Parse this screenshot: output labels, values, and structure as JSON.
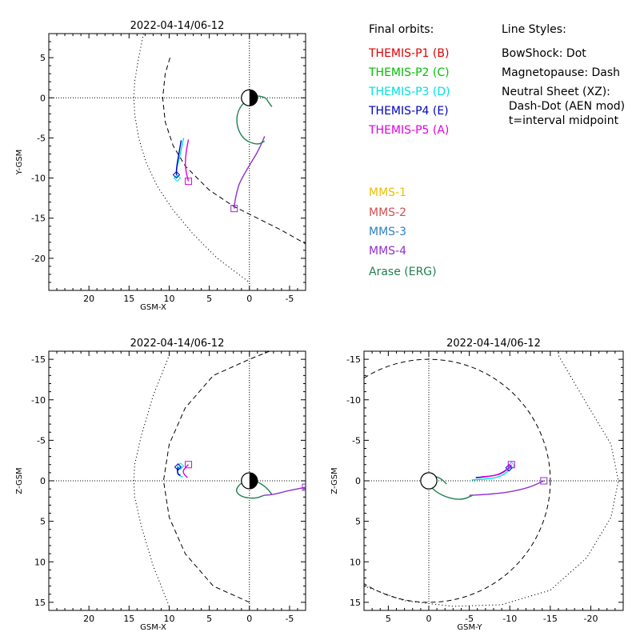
{
  "panels": [
    {
      "id": "xy",
      "title": "2022-04-14/06-12",
      "xlabel": "GSM-X",
      "ylabel": "Y-GSM",
      "xlim": [
        25,
        -7
      ],
      "ylim": [
        8,
        -24
      ],
      "xticks": [
        20,
        15,
        10,
        5,
        0,
        -5
      ],
      "xtick_labels": [
        "20",
        "15",
        "10",
        "5",
        "0",
        "-5"
      ],
      "yticks": [
        5,
        0,
        -5,
        -10,
        -15,
        -20
      ],
      "ytick_labels": [
        "5",
        "0",
        "-5",
        "-10",
        "-15",
        "-20"
      ]
    },
    {
      "id": "xz",
      "title": "2022-04-14/06-12",
      "xlabel": "GSM-X",
      "ylabel": "Z-GSM",
      "xlim": [
        25,
        -7
      ],
      "ylim": [
        -16,
        16
      ],
      "xticks": [
        20,
        15,
        10,
        5,
        0,
        -5
      ],
      "xtick_labels": [
        "20",
        "15",
        "10",
        "5",
        "0",
        "-5"
      ],
      "yticks": [
        -15,
        -10,
        -5,
        0,
        5,
        10,
        15
      ],
      "ytick_labels": [
        "-15",
        "-10",
        "-5",
        "0",
        "5",
        "10",
        "15"
      ]
    },
    {
      "id": "yz",
      "title": "2022-04-14/06-12",
      "xlabel": "GSM-Y",
      "ylabel": "Z-GSM",
      "xlim": [
        8,
        -24
      ],
      "ylim": [
        -16,
        16
      ],
      "xticks": [
        5,
        0,
        -5,
        -10,
        -15,
        -20
      ],
      "xtick_labels": [
        "5",
        "0",
        "-5",
        "-10",
        "-15",
        "-20"
      ],
      "yticks": [
        -15,
        -10,
        -5,
        0,
        5,
        10,
        15
      ],
      "ytick_labels": [
        "-15",
        "-10",
        "-5",
        "0",
        "5",
        "10",
        "15"
      ]
    }
  ],
  "legend": {
    "orbits_heading": "Final orbits:",
    "styles_heading": "Line Styles:",
    "themis": [
      {
        "label": "THEMIS-P1 (B)",
        "color": "#e00000"
      },
      {
        "label": "THEMIS-P2 (C)",
        "color": "#00c000"
      },
      {
        "label": "THEMIS-P3 (D)",
        "color": "#00e0e0"
      },
      {
        "label": "THEMIS-P4 (E)",
        "color": "#0000c0"
      },
      {
        "label": "THEMIS-P5 (A)",
        "color": "#e000e0"
      }
    ],
    "styles": [
      "BowShock: Dot",
      "Magnetopause: Dash",
      "Neutral Sheet (XZ):",
      "  Dash-Dot (AEN mod)",
      "  t=interval midpoint"
    ],
    "mms": [
      {
        "label": "MMS-1",
        "color": "#f0c000"
      },
      {
        "label": "MMS-2",
        "color": "#d05050"
      },
      {
        "label": "MMS-3",
        "color": "#3080c0"
      },
      {
        "label": "MMS-4",
        "color": "#9030d0"
      },
      {
        "label": "Arase (ERG)",
        "color": "#208050"
      }
    ]
  },
  "chart_data": [
    {
      "type": "line",
      "title": "2022-04-14/06-12",
      "xlabel": "GSM-X",
      "ylabel": "Y-GSM",
      "xlim": [
        25,
        -7
      ],
      "ylim": [
        8,
        -24
      ],
      "boundaries": {
        "bowshock": {
          "style": "dot",
          "x": [
            13.2,
            13.8,
            14.3,
            14.4,
            14.3,
            13.8,
            12.9,
            11.5,
            9.5,
            7.0,
            4.0,
            0.0
          ],
          "y": [
            8,
            5,
            2,
            0,
            -2,
            -5,
            -8,
            -11,
            -14,
            -17,
            -20,
            -23
          ]
        },
        "magnetopause": {
          "style": "dash",
          "x": [
            9.9,
            10.5,
            10.8,
            10.5,
            9.5,
            8.0,
            5.0,
            2.0,
            -1.0,
            -4.0,
            -7.0
          ],
          "y": [
            5.0,
            3.0,
            0.0,
            -3.0,
            -6.0,
            -8.5,
            -11.5,
            -13.5,
            -15.0,
            -16.5,
            -18.2
          ]
        }
      },
      "series": [
        {
          "name": "THEMIS-P3 (D)",
          "color": "#00e0e0",
          "x": [
            8.2,
            8.6,
            9.0,
            9.1,
            9.0
          ],
          "y": [
            -5.0,
            -7.0,
            -8.5,
            -9.3,
            -10.0
          ]
        },
        {
          "name": "THEMIS-P4 (E)",
          "color": "#0000c0",
          "x": [
            8.5,
            8.8,
            9.1,
            9.1
          ],
          "y": [
            -5.3,
            -7.0,
            -8.8,
            -9.6
          ]
        },
        {
          "name": "THEMIS-P5 (A)",
          "color": "#e000e0",
          "x": [
            7.6,
            7.9,
            8.0,
            7.9,
            7.6
          ],
          "y": [
            -5.2,
            -6.8,
            -8.2,
            -9.2,
            -10.4
          ]
        },
        {
          "name": "MMS-4",
          "color": "#9030d0",
          "x": [
            -1.9,
            -1.6,
            -1.0,
            0.0,
            1.2,
            1.5,
            1.8,
            1.9
          ],
          "y": [
            -4.8,
            -5.5,
            -6.8,
            -8.4,
            -10.5,
            -11.5,
            -12.8,
            -13.8
          ]
        },
        {
          "name": "Arase (ERG)",
          "color": "#208050",
          "x": [
            -1.9,
            -1.0,
            0.8,
            1.7,
            1.3,
            -0.5,
            -2.0,
            -2.4,
            -2.8
          ],
          "y": [
            -5.4,
            -5.9,
            -5.2,
            -3.2,
            -1.1,
            0.3,
            0.1,
            -0.6,
            -1.1
          ]
        }
      ]
    },
    {
      "type": "line",
      "title": "2022-04-14/06-12",
      "xlabel": "GSM-X",
      "ylabel": "Z-GSM",
      "xlim": [
        25,
        -7
      ],
      "ylim": [
        -16,
        16
      ],
      "boundaries": {
        "bowshock": {
          "style": "dot",
          "x": [
            10.0,
            12.0,
            13.5,
            14.3,
            14.4,
            14.3,
            13.5,
            12.0,
            10.0
          ],
          "y": [
            15.5,
            10.5,
            5.5,
            2.0,
            0.0,
            -2.0,
            -5.5,
            -10.5,
            -15.5
          ]
        },
        "magnetopause": {
          "style": "dash",
          "x": [
            0.0,
            4.5,
            8.0,
            10.0,
            10.7,
            10.0,
            8.0,
            4.5,
            0.0,
            -2.5
          ],
          "y": [
            15.0,
            13.0,
            9.0,
            4.5,
            0.0,
            -4.5,
            -9.0,
            -13.0,
            -15.0,
            -16.0
          ]
        }
      },
      "series": [
        {
          "name": "THEMIS-P3 (D)",
          "color": "#00e0e0",
          "x": [
            8.3,
            8.7,
            9.0,
            8.9,
            8.6
          ],
          "y": [
            -0.5,
            -0.6,
            -0.9,
            -1.4,
            -1.8
          ]
        },
        {
          "name": "THEMIS-P4 (E)",
          "color": "#0000c0",
          "x": [
            8.6,
            8.9,
            9.0,
            8.9
          ],
          "y": [
            -0.7,
            -0.8,
            -1.3,
            -1.7
          ]
        },
        {
          "name": "THEMIS-P5 (A)",
          "color": "#e000e0",
          "x": [
            7.7,
            8.1,
            8.3,
            8.0,
            7.6
          ],
          "y": [
            -0.4,
            -0.7,
            -1.2,
            -1.6,
            -2.0
          ]
        },
        {
          "name": "Arase (ERG)",
          "color": "#208050",
          "x": [
            -1.8,
            -0.7,
            1.0,
            1.8,
            1.0,
            -0.2,
            -1.2,
            -2.2,
            -2.8
          ],
          "y": [
            1.8,
            2.2,
            2.0,
            1.2,
            0.2,
            -0.2,
            0.2,
            0.9,
            1.7
          ]
        },
        {
          "name": "MMS-4",
          "color": "#9030d0",
          "x": [
            -1.8,
            -3.0,
            -4.5,
            -6.0,
            -7.0
          ],
          "y": [
            1.8,
            1.7,
            1.3,
            1.0,
            0.8
          ]
        }
      ]
    },
    {
      "type": "line",
      "title": "2022-04-14/06-12",
      "xlabel": "GSM-Y",
      "ylabel": "Z-GSM",
      "xlim": [
        8,
        -24
      ],
      "ylim": [
        -16,
        16
      ],
      "boundaries": {
        "bowshock": {
          "style": "dot",
          "x": [
            8.0,
            3.0,
            -3.0,
            -9.0,
            -15.0,
            -19.5,
            -22.5,
            -23.4,
            -22.5,
            -19.5,
            -16.0
          ],
          "y": [
            13.0,
            14.8,
            15.5,
            15.3,
            13.5,
            9.5,
            4.5,
            0.0,
            -4.5,
            -9.5,
            -15.5
          ]
        },
        "magnetopause": {
          "style": "dash",
          "circle_center": [
            0,
            0
          ],
          "radius": 15
        }
      },
      "series": [
        {
          "name": "MMS-4",
          "color": "#9030d0",
          "x": [
            -5.0,
            -7.0,
            -10.0,
            -12.5,
            -14.2
          ],
          "y": [
            1.8,
            1.7,
            1.4,
            0.8,
            0.0
          ]
        },
        {
          "name": "THEMIS-P3 (D)",
          "color": "#00e0e0",
          "x": [
            -5.3,
            -6.5,
            -8.0,
            -9.5,
            -10.2
          ],
          "y": [
            -0.1,
            -0.2,
            -0.3,
            -0.8,
            -1.9
          ]
        },
        {
          "name": "THEMIS-P4 (E)",
          "color": "#0000c0",
          "x": [
            -5.8,
            -7.2,
            -8.8,
            -9.9
          ],
          "y": [
            -0.4,
            -0.5,
            -0.8,
            -1.6
          ]
        },
        {
          "name": "THEMIS-P5 (A)",
          "color": "#e000e0",
          "x": [
            -6.5,
            -8.0,
            -9.3,
            -10.2
          ],
          "y": [
            -0.5,
            -0.6,
            -1.0,
            -2.0
          ]
        },
        {
          "name": "Arase (ERG)",
          "color": "#208050",
          "x": [
            -5.4,
            -4.0,
            -2.0,
            -0.5,
            0.2,
            -0.6,
            -1.5,
            -2.2
          ],
          "y": [
            1.8,
            2.4,
            2.0,
            1.1,
            0.0,
            -0.6,
            -0.3,
            0.4
          ]
        }
      ]
    }
  ]
}
